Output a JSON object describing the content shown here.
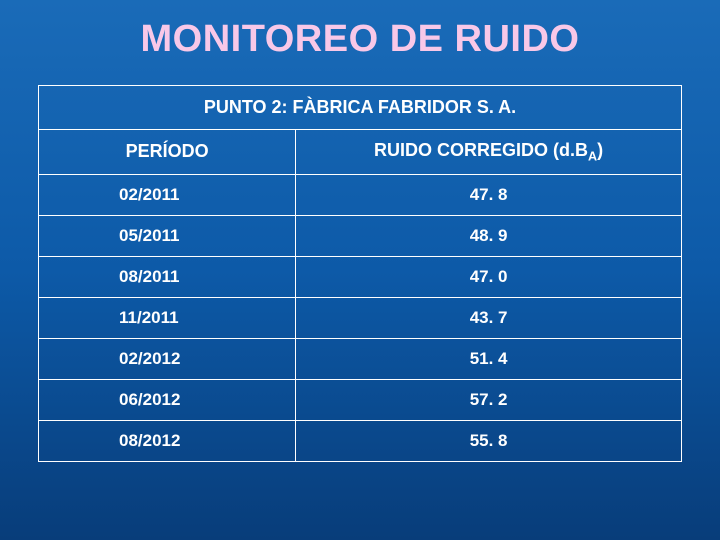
{
  "title": "MONITOREO DE RUIDO",
  "table": {
    "caption": "PUNTO 2: FÀBRICA FABRIDOR S. A.",
    "columns": {
      "period": "PERÍODO",
      "value_prefix": "RUIDO CORREGIDO (d.B",
      "value_sub": "A",
      "value_suffix": ")"
    },
    "rows": [
      {
        "period": "02/2011",
        "value": "47. 8"
      },
      {
        "period": "05/2011",
        "value": "48. 9"
      },
      {
        "period": "08/2011",
        "value": "47. 0"
      },
      {
        "period": "11/2011",
        "value": "43. 7"
      },
      {
        "period": "02/2012",
        "value": "51. 4"
      },
      {
        "period": "06/2012",
        "value": "57. 2"
      },
      {
        "period": "08/2012",
        "value": "55. 8"
      }
    ],
    "styles": {
      "border_color": "#ffffff",
      "text_color": "#ffffff",
      "title_color": "#f8c8e8",
      "background_gradient": [
        "#1a6bb8",
        "#0d5aa8",
        "#083d7a"
      ],
      "title_fontsize": 38,
      "caption_fontsize": 18,
      "header_fontsize": 18,
      "cell_fontsize": 17,
      "column_widths_pct": [
        40,
        60
      ]
    }
  }
}
